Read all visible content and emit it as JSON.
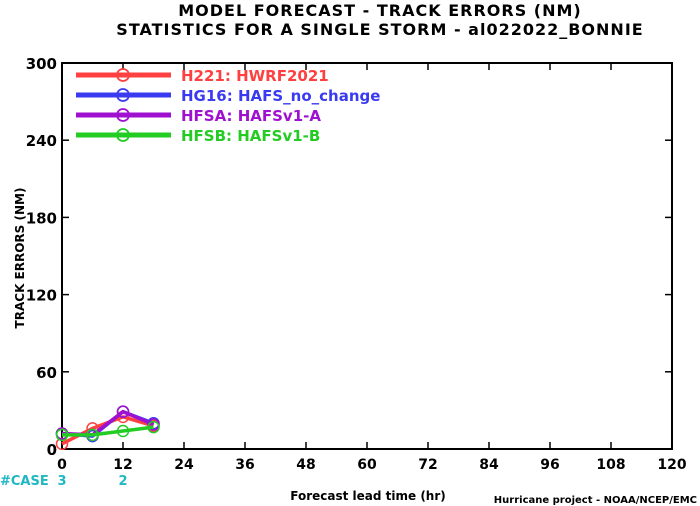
{
  "chart_data": {
    "type": "line",
    "title": "MODEL FORECAST - TRACK ERRORS (NM)",
    "subtitle": "STATISTICS FOR A SINGLE STORM - al022022_BONNIE",
    "xlabel": "Forecast lead time (hr)",
    "ylabel": "TRACK ERRORS (NM)",
    "xlim": [
      0,
      120
    ],
    "ylim": [
      0,
      300
    ],
    "x_ticks": [
      "0",
      "12",
      "24",
      "36",
      "48",
      "60",
      "72",
      "84",
      "96",
      "108",
      "120"
    ],
    "y_ticks": [
      "0",
      "60",
      "120",
      "180",
      "240",
      "300"
    ],
    "legend_position": "top-left",
    "grid": false,
    "series": [
      {
        "name": "H221: HWRF2021",
        "color": "#ff4040",
        "x": [
          0,
          6,
          12,
          18
        ],
        "y": [
          4,
          16,
          25,
          18
        ]
      },
      {
        "name": "HG16: HAFS_no_change",
        "color": "#3a3af0",
        "x": [
          0,
          6,
          12,
          18
        ],
        "y": [
          12,
          10,
          29,
          20
        ]
      },
      {
        "name": "HFSA: HAFSv1-A",
        "color": "#a010d0",
        "x": [
          0,
          6,
          12,
          18
        ],
        "y": [
          12,
          11,
          29,
          19
        ]
      },
      {
        "name": "HFSB: HAFSv1-B",
        "color": "#22cc22",
        "x": [
          0,
          6,
          12,
          18
        ],
        "y": [
          11,
          11,
          14,
          17
        ]
      }
    ],
    "case_label": "#CASE",
    "cases": [
      {
        "x": 0,
        "count": "3"
      },
      {
        "x": 12,
        "count": "2"
      }
    ]
  },
  "footer": {
    "credit": "Hurricane project - NOAA/NCEP/EMC"
  }
}
